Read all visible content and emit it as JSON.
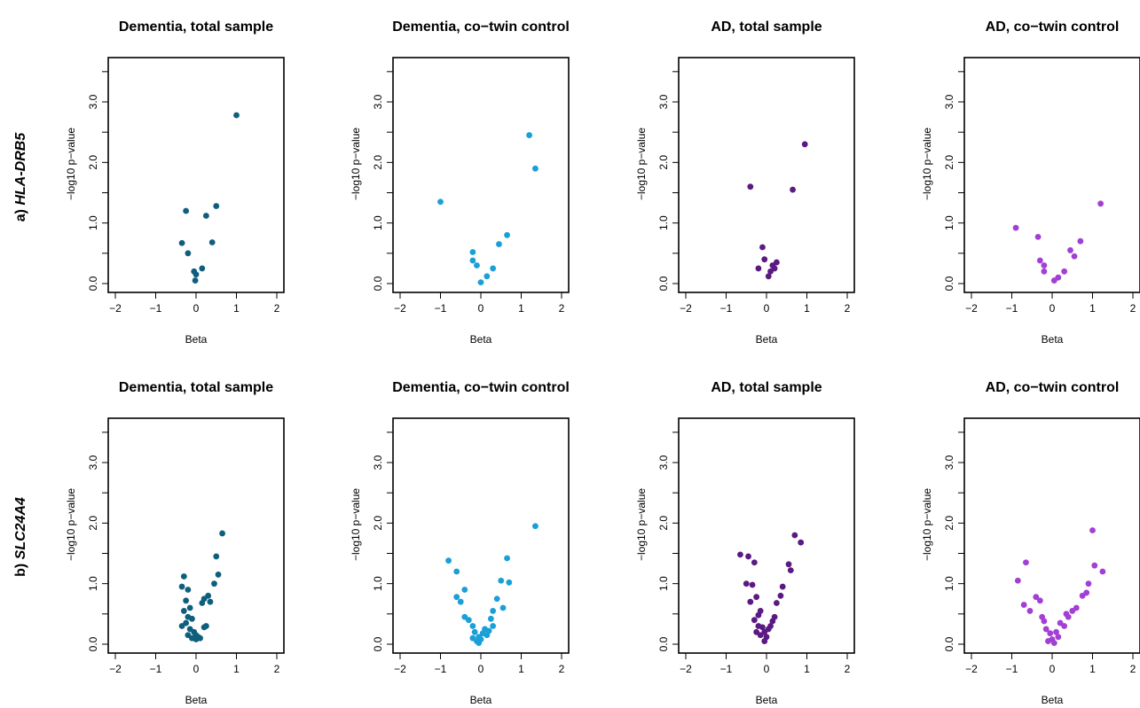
{
  "rows": [
    {
      "label_prefix": "a)",
      "gene": "HLA-DRB5"
    },
    {
      "label_prefix": "b)",
      "gene": "SLC24A4"
    }
  ],
  "colors": {
    "dementia_total": "#0e5f7d",
    "dementia_cotwin": "#1a9fd6",
    "ad_total": "#5b1a82",
    "ad_cotwin": "#a23fd4"
  },
  "chart_data": [
    {
      "type": "scatter",
      "title": "Dementia, total sample",
      "xlabel": "Beta",
      "ylabel": "−log10 p−value",
      "xlim": [
        -2,
        2
      ],
      "ylim": [
        0,
        3.5
      ],
      "xticks": [
        "−2",
        "−1",
        "0",
        "1",
        "2"
      ],
      "yticks": [
        "0.0",
        "1.0",
        "2.0",
        "3.0"
      ],
      "color": "#0e5f7d",
      "points": [
        [
          1.0,
          2.78
        ],
        [
          0.5,
          1.28
        ],
        [
          0.25,
          1.12
        ],
        [
          -0.25,
          1.2
        ],
        [
          0.4,
          0.68
        ],
        [
          -0.35,
          0.67
        ],
        [
          -0.2,
          0.5
        ],
        [
          0.15,
          0.25
        ],
        [
          -0.05,
          0.2
        ],
        [
          0.0,
          0.15
        ],
        [
          -0.02,
          0.05
        ]
      ]
    },
    {
      "type": "scatter",
      "title": "Dementia, co−twin control",
      "xlabel": "Beta",
      "ylabel": "−log10 p−value",
      "xlim": [
        -2,
        2
      ],
      "ylim": [
        0,
        3.5
      ],
      "xticks": [
        "−2",
        "−1",
        "0",
        "1",
        "2"
      ],
      "yticks": [
        "0.0",
        "1.0",
        "2.0",
        "3.0"
      ],
      "color": "#1a9fd6",
      "points": [
        [
          1.2,
          2.45
        ],
        [
          1.35,
          1.9
        ],
        [
          -1.0,
          1.35
        ],
        [
          0.65,
          0.8
        ],
        [
          0.45,
          0.65
        ],
        [
          -0.2,
          0.52
        ],
        [
          -0.2,
          0.38
        ],
        [
          -0.1,
          0.3
        ],
        [
          0.3,
          0.25
        ],
        [
          0.15,
          0.12
        ],
        [
          0.0,
          0.02
        ]
      ]
    },
    {
      "type": "scatter",
      "title": "AD, total sample",
      "xlabel": "Beta",
      "ylabel": "−log10 p−value",
      "xlim": [
        -2,
        2
      ],
      "ylim": [
        0,
        3.5
      ],
      "xticks": [
        "−2",
        "−1",
        "0",
        "1",
        "2"
      ],
      "yticks": [
        "0.0",
        "1.0",
        "2.0",
        "3.0"
      ],
      "color": "#5b1a82",
      "points": [
        [
          0.95,
          2.3
        ],
        [
          -0.4,
          1.6
        ],
        [
          0.65,
          1.55
        ],
        [
          -0.1,
          0.6
        ],
        [
          -0.05,
          0.4
        ],
        [
          0.25,
          0.35
        ],
        [
          0.15,
          0.3
        ],
        [
          0.2,
          0.25
        ],
        [
          -0.2,
          0.25
        ],
        [
          0.1,
          0.2
        ],
        [
          0.05,
          0.12
        ]
      ]
    },
    {
      "type": "scatter",
      "title": "AD, co−twin control",
      "xlabel": "Beta",
      "ylabel": "−log10 p−value",
      "xlim": [
        -2,
        2
      ],
      "ylim": [
        0,
        3.5
      ],
      "xticks": [
        "−2",
        "−1",
        "0",
        "1",
        "2"
      ],
      "yticks": [
        "0.0",
        "1.0",
        "2.0",
        "3.0"
      ],
      "color": "#a23fd4",
      "points": [
        [
          1.2,
          1.32
        ],
        [
          -0.9,
          0.92
        ],
        [
          -0.35,
          0.77
        ],
        [
          0.7,
          0.7
        ],
        [
          0.45,
          0.55
        ],
        [
          0.55,
          0.45
        ],
        [
          -0.3,
          0.38
        ],
        [
          -0.2,
          0.3
        ],
        [
          -0.2,
          0.2
        ],
        [
          0.3,
          0.2
        ],
        [
          0.15,
          0.1
        ],
        [
          0.05,
          0.05
        ]
      ]
    },
    {
      "type": "scatter",
      "title": "Dementia, total sample",
      "xlabel": "Beta",
      "ylabel": "−log10 p−value",
      "xlim": [
        -2,
        2
      ],
      "ylim": [
        0,
        3.5
      ],
      "xticks": [
        "−2",
        "−1",
        "0",
        "1",
        "2"
      ],
      "yticks": [
        "0.0",
        "1.0",
        "2.0",
        "3.0"
      ],
      "color": "#0e5f7d",
      "points": [
        [
          0.65,
          1.83
        ],
        [
          0.5,
          1.45
        ],
        [
          0.55,
          1.15
        ],
        [
          -0.3,
          1.12
        ],
        [
          -0.35,
          0.95
        ],
        [
          0.45,
          1.0
        ],
        [
          -0.2,
          0.9
        ],
        [
          0.3,
          0.8
        ],
        [
          0.2,
          0.75
        ],
        [
          -0.25,
          0.72
        ],
        [
          0.35,
          0.7
        ],
        [
          0.15,
          0.68
        ],
        [
          -0.15,
          0.6
        ],
        [
          -0.3,
          0.55
        ],
        [
          -0.2,
          0.45
        ],
        [
          -0.1,
          0.42
        ],
        [
          -0.25,
          0.35
        ],
        [
          -0.35,
          0.3
        ],
        [
          0.25,
          0.3
        ],
        [
          0.2,
          0.28
        ],
        [
          -0.15,
          0.25
        ],
        [
          -0.05,
          0.2
        ],
        [
          0.0,
          0.15
        ],
        [
          0.05,
          0.12
        ],
        [
          -0.1,
          0.1
        ],
        [
          0.0,
          0.08
        ],
        [
          0.1,
          0.1
        ],
        [
          -0.2,
          0.15
        ]
      ]
    },
    {
      "type": "scatter",
      "title": "Dementia, co−twin control",
      "xlabel": "Beta",
      "ylabel": "−log10 p−value",
      "xlim": [
        -2,
        2
      ],
      "ylim": [
        0,
        3.5
      ],
      "xticks": [
        "−2",
        "−1",
        "0",
        "1",
        "2"
      ],
      "yticks": [
        "0.0",
        "1.0",
        "2.0",
        "3.0"
      ],
      "color": "#1a9fd6",
      "points": [
        [
          1.35,
          1.95
        ],
        [
          0.65,
          1.42
        ],
        [
          -0.8,
          1.38
        ],
        [
          -0.6,
          1.2
        ],
        [
          0.5,
          1.05
        ],
        [
          0.7,
          1.02
        ],
        [
          -0.4,
          0.9
        ],
        [
          -0.6,
          0.78
        ],
        [
          0.4,
          0.75
        ],
        [
          -0.5,
          0.7
        ],
        [
          0.55,
          0.6
        ],
        [
          0.3,
          0.55
        ],
        [
          -0.4,
          0.45
        ],
        [
          -0.3,
          0.4
        ],
        [
          0.25,
          0.42
        ],
        [
          0.3,
          0.3
        ],
        [
          -0.2,
          0.3
        ],
        [
          0.1,
          0.25
        ],
        [
          0.2,
          0.22
        ],
        [
          -0.15,
          0.2
        ],
        [
          0.05,
          0.18
        ],
        [
          -0.05,
          0.12
        ],
        [
          0.0,
          0.08
        ],
        [
          -0.1,
          0.05
        ],
        [
          0.15,
          0.15
        ],
        [
          -0.2,
          0.1
        ],
        [
          -0.05,
          0.02
        ]
      ]
    },
    {
      "type": "scatter",
      "title": "AD, total sample",
      "xlabel": "Beta",
      "ylabel": "−log10 p−value",
      "xlim": [
        -2,
        2
      ],
      "ylim": [
        0,
        3.5
      ],
      "xticks": [
        "−2",
        "−1",
        "0",
        "1",
        "2"
      ],
      "yticks": [
        "0.0",
        "1.0",
        "2.0",
        "3.0"
      ],
      "color": "#5b1a82",
      "points": [
        [
          0.7,
          1.8
        ],
        [
          0.85,
          1.68
        ],
        [
          -0.65,
          1.48
        ],
        [
          -0.45,
          1.45
        ],
        [
          -0.3,
          1.35
        ],
        [
          0.55,
          1.32
        ],
        [
          0.6,
          1.22
        ],
        [
          -0.5,
          1.0
        ],
        [
          -0.35,
          0.98
        ],
        [
          0.4,
          0.95
        ],
        [
          0.35,
          0.8
        ],
        [
          0.25,
          0.68
        ],
        [
          -0.25,
          0.78
        ],
        [
          -0.4,
          0.7
        ],
        [
          -0.15,
          0.55
        ],
        [
          -0.2,
          0.48
        ],
        [
          0.2,
          0.45
        ],
        [
          0.15,
          0.38
        ],
        [
          -0.3,
          0.4
        ],
        [
          -0.2,
          0.3
        ],
        [
          -0.1,
          0.28
        ],
        [
          0.05,
          0.25
        ],
        [
          -0.05,
          0.2
        ],
        [
          -0.15,
          0.15
        ],
        [
          0.0,
          0.12
        ],
        [
          -0.05,
          0.05
        ],
        [
          0.1,
          0.3
        ],
        [
          -0.25,
          0.2
        ]
      ]
    },
    {
      "type": "scatter",
      "title": "AD, co−twin control",
      "xlabel": "Beta",
      "ylabel": "−log10 p−value",
      "xlim": [
        -2,
        2
      ],
      "ylim": [
        0,
        3.5
      ],
      "xticks": [
        "−2",
        "−1",
        "0",
        "1",
        "2"
      ],
      "yticks": [
        "0.0",
        "1.0",
        "2.0",
        "3.0"
      ],
      "color": "#a23fd4",
      "points": [
        [
          1.0,
          1.88
        ],
        [
          -0.65,
          1.35
        ],
        [
          1.05,
          1.3
        ],
        [
          1.25,
          1.2
        ],
        [
          -0.85,
          1.05
        ],
        [
          0.9,
          1.0
        ],
        [
          -0.4,
          0.78
        ],
        [
          -0.3,
          0.72
        ],
        [
          0.85,
          0.85
        ],
        [
          0.75,
          0.8
        ],
        [
          0.6,
          0.6
        ],
        [
          -0.7,
          0.65
        ],
        [
          0.5,
          0.55
        ],
        [
          0.35,
          0.5
        ],
        [
          0.4,
          0.45
        ],
        [
          -0.55,
          0.55
        ],
        [
          -0.25,
          0.45
        ],
        [
          -0.2,
          0.38
        ],
        [
          0.2,
          0.35
        ],
        [
          0.3,
          0.3
        ],
        [
          -0.15,
          0.25
        ],
        [
          0.1,
          0.2
        ],
        [
          -0.05,
          0.18
        ],
        [
          0.15,
          0.12
        ],
        [
          0.0,
          0.08
        ],
        [
          -0.1,
          0.05
        ],
        [
          0.05,
          0.02
        ]
      ]
    }
  ]
}
